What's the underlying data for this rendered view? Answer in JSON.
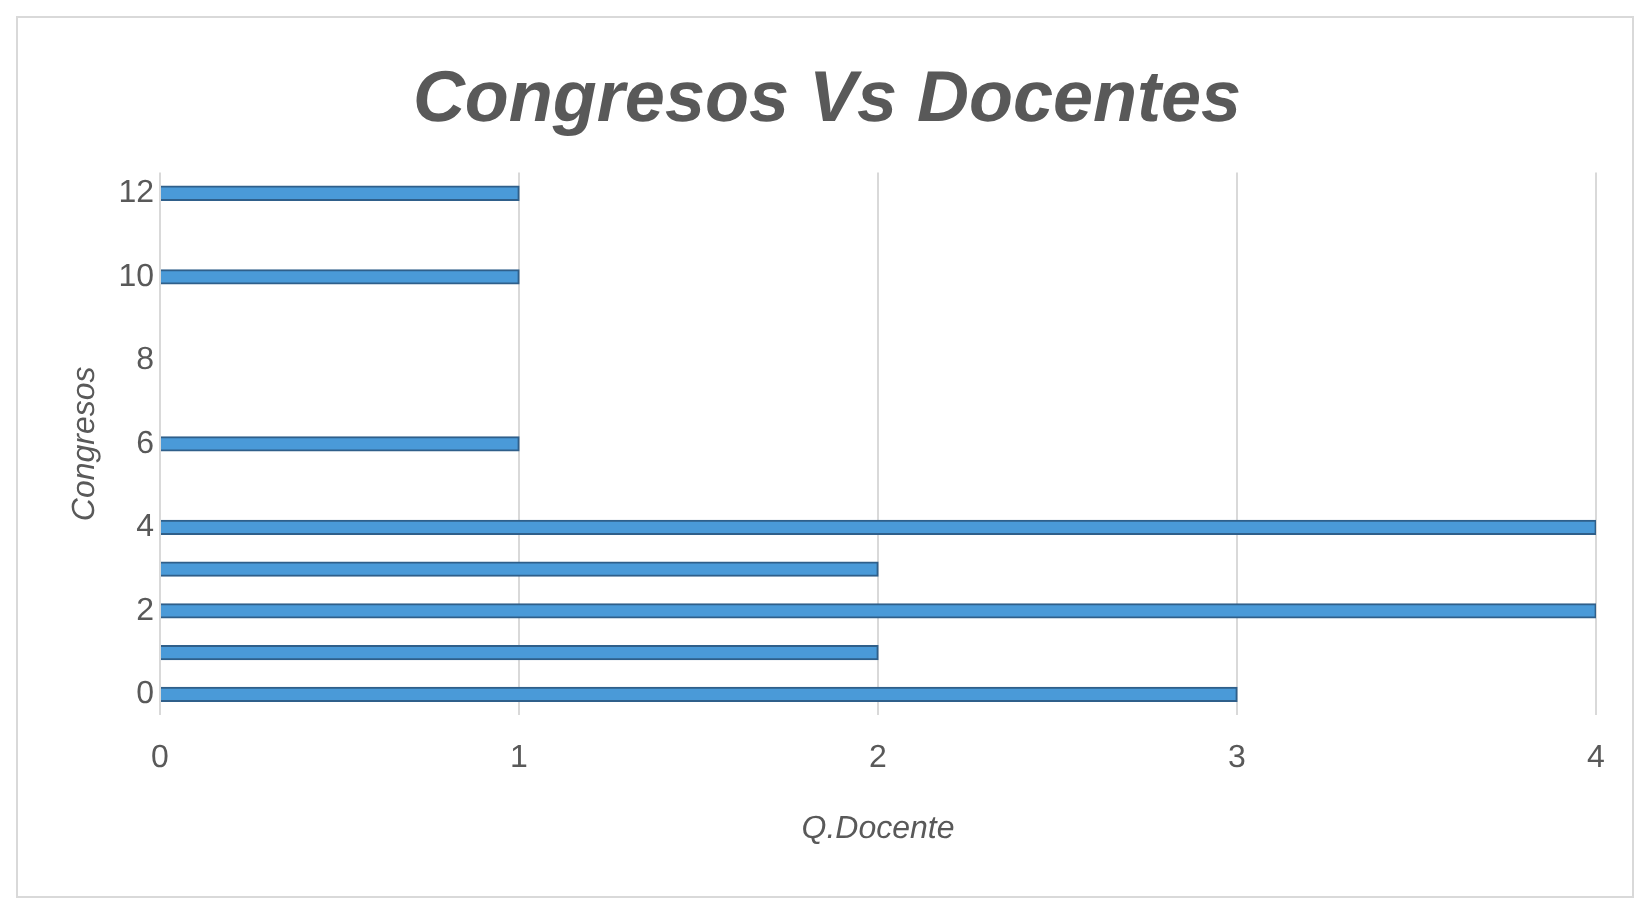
{
  "chart_data": {
    "type": "bar",
    "orientation": "horizontal",
    "title": "Congresos Vs Docentes",
    "xlabel": "Q.Docente",
    "ylabel": "Congresos",
    "categories": [
      "12",
      null,
      "10",
      null,
      "8",
      null,
      "6",
      null,
      "4",
      null,
      "2",
      null,
      "0"
    ],
    "values": [
      1,
      null,
      1,
      null,
      null,
      null,
      1,
      null,
      4,
      2,
      4,
      2,
      3
    ],
    "color": "#4a9ad8",
    "xlim": [
      0,
      4
    ],
    "xticks": [
      0,
      1,
      2,
      3,
      4
    ],
    "grid": "x"
  }
}
